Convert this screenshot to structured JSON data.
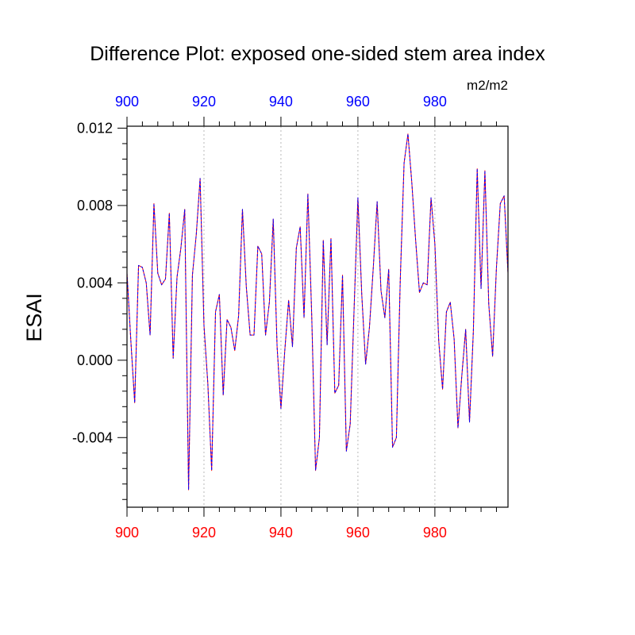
{
  "chart_data": {
    "type": "line",
    "title": "Difference Plot: exposed one-sided stem area index",
    "units": "m2/m2",
    "ylabel": "ESAI",
    "xlabel": "",
    "xlim": [
      900,
      999
    ],
    "ylim": [
      -0.0076,
      0.0121
    ],
    "x_ticks": [
      900,
      920,
      940,
      960,
      980
    ],
    "x_tick_labels": [
      "900",
      "920",
      "940",
      "960",
      "980"
    ],
    "y_ticks": [
      -0.004,
      0.0,
      0.004,
      0.008,
      0.012
    ],
    "y_tick_labels": [
      "-0.004",
      "0.000",
      "0.004",
      "0.008",
      "0.012"
    ],
    "grid": "vertical dotted at major x ticks",
    "bottom_axis_color": "#ff0000",
    "top_axis_color": "#0000ff",
    "series": [
      {
        "color": "#ff0000",
        "style": "solid",
        "x": [
          900,
          901,
          902,
          903,
          904,
          905,
          906,
          907,
          908,
          909,
          910,
          911,
          912,
          913,
          914,
          915,
          916,
          917,
          918,
          919,
          920,
          921,
          922,
          923,
          924,
          925,
          926,
          927,
          928,
          929,
          930,
          931,
          932,
          933,
          934,
          935,
          936,
          937,
          938,
          939,
          940,
          941,
          942,
          943,
          944,
          945,
          946,
          947,
          948,
          949,
          950,
          951,
          952,
          953,
          954,
          955,
          956,
          957,
          958,
          959,
          960,
          961,
          962,
          963,
          964,
          965,
          966,
          967,
          968,
          969,
          970,
          971,
          972,
          973,
          974,
          975,
          976,
          977,
          978,
          979,
          980,
          981,
          982,
          983,
          984,
          985,
          986,
          987,
          988,
          989,
          990,
          991,
          992,
          993,
          994,
          995,
          996,
          997,
          998,
          999
        ],
        "values": [
          0.0045,
          0.001,
          -0.0022,
          0.0049,
          0.0048,
          0.004,
          0.0013,
          0.0081,
          0.0045,
          0.0039,
          0.0042,
          0.0076,
          0.0001,
          0.0043,
          0.0058,
          0.0078,
          -0.0067,
          0.0044,
          0.0065,
          0.0094,
          0.0018,
          -0.0012,
          -0.0057,
          0.0025,
          0.0034,
          -0.0018,
          0.0021,
          0.0017,
          0.0005,
          0.0023,
          0.0078,
          0.0038,
          0.0013,
          0.0013,
          0.0059,
          0.0055,
          0.0013,
          0.003,
          0.0073,
          0.0007,
          -0.0025,
          0.0005,
          0.0031,
          0.0007,
          0.0058,
          0.0069,
          0.0022,
          0.0086,
          0.0023,
          -0.0057,
          -0.004,
          0.0062,
          0.0008,
          0.0063,
          -0.0017,
          -0.0013,
          0.0044,
          -0.0047,
          -0.0033,
          0.0026,
          0.0084,
          0.0034,
          -0.0002,
          0.0017,
          0.0048,
          0.0082,
          0.0036,
          0.0022,
          0.0047,
          -0.0045,
          -0.004,
          0.0041,
          0.0102,
          0.0117,
          0.0092,
          0.0062,
          0.0035,
          0.004,
          0.0039,
          0.0084,
          0.006,
          0.001,
          -0.0015,
          0.0025,
          0.003,
          0.0011,
          -0.0035,
          -0.0008,
          0.0016,
          -0.0032,
          0.0015,
          0.0099,
          0.0037,
          0.0098,
          0.0029,
          0.0002,
          0.0048,
          0.0081,
          0.0085,
          0.0045
        ]
      },
      {
        "color": "#0000ff",
        "style": "dashed",
        "x": [
          900,
          901,
          902,
          903,
          904,
          905,
          906,
          907,
          908,
          909,
          910,
          911,
          912,
          913,
          914,
          915,
          916,
          917,
          918,
          919,
          920,
          921,
          922,
          923,
          924,
          925,
          926,
          927,
          928,
          929,
          930,
          931,
          932,
          933,
          934,
          935,
          936,
          937,
          938,
          939,
          940,
          941,
          942,
          943,
          944,
          945,
          946,
          947,
          948,
          949,
          950,
          951,
          952,
          953,
          954,
          955,
          956,
          957,
          958,
          959,
          960,
          961,
          962,
          963,
          964,
          965,
          966,
          967,
          968,
          969,
          970,
          971,
          972,
          973,
          974,
          975,
          976,
          977,
          978,
          979,
          980,
          981,
          982,
          983,
          984,
          985,
          986,
          987,
          988,
          989,
          990,
          991,
          992,
          993,
          994,
          995,
          996,
          997,
          998,
          999
        ],
        "values": [
          0.0045,
          0.001,
          -0.0022,
          0.0049,
          0.0048,
          0.004,
          0.0013,
          0.0081,
          0.0045,
          0.0039,
          0.0042,
          0.0076,
          0.0001,
          0.0043,
          0.0058,
          0.0078,
          -0.0067,
          0.0044,
          0.0065,
          0.0094,
          0.0018,
          -0.0012,
          -0.0057,
          0.0025,
          0.0034,
          -0.0018,
          0.0021,
          0.0017,
          0.0005,
          0.0023,
          0.0078,
          0.0038,
          0.0013,
          0.0013,
          0.0059,
          0.0055,
          0.0013,
          0.003,
          0.0073,
          0.0007,
          -0.0025,
          0.0005,
          0.0031,
          0.0007,
          0.0058,
          0.0069,
          0.0022,
          0.0086,
          0.0023,
          -0.0057,
          -0.004,
          0.0062,
          0.0008,
          0.0063,
          -0.0017,
          -0.0013,
          0.0044,
          -0.0047,
          -0.0033,
          0.0026,
          0.0084,
          0.0034,
          -0.0002,
          0.0017,
          0.0048,
          0.0082,
          0.0036,
          0.0022,
          0.0047,
          -0.0045,
          -0.004,
          0.0041,
          0.0102,
          0.0117,
          0.0092,
          0.0062,
          0.0035,
          0.004,
          0.0039,
          0.0084,
          0.006,
          0.001,
          -0.0015,
          0.0025,
          0.003,
          0.0011,
          -0.0035,
          -0.0008,
          0.0016,
          -0.0032,
          0.0015,
          0.0099,
          0.0037,
          0.0098,
          0.0029,
          0.0002,
          0.0048,
          0.0081,
          0.0085,
          0.0045
        ]
      }
    ]
  }
}
